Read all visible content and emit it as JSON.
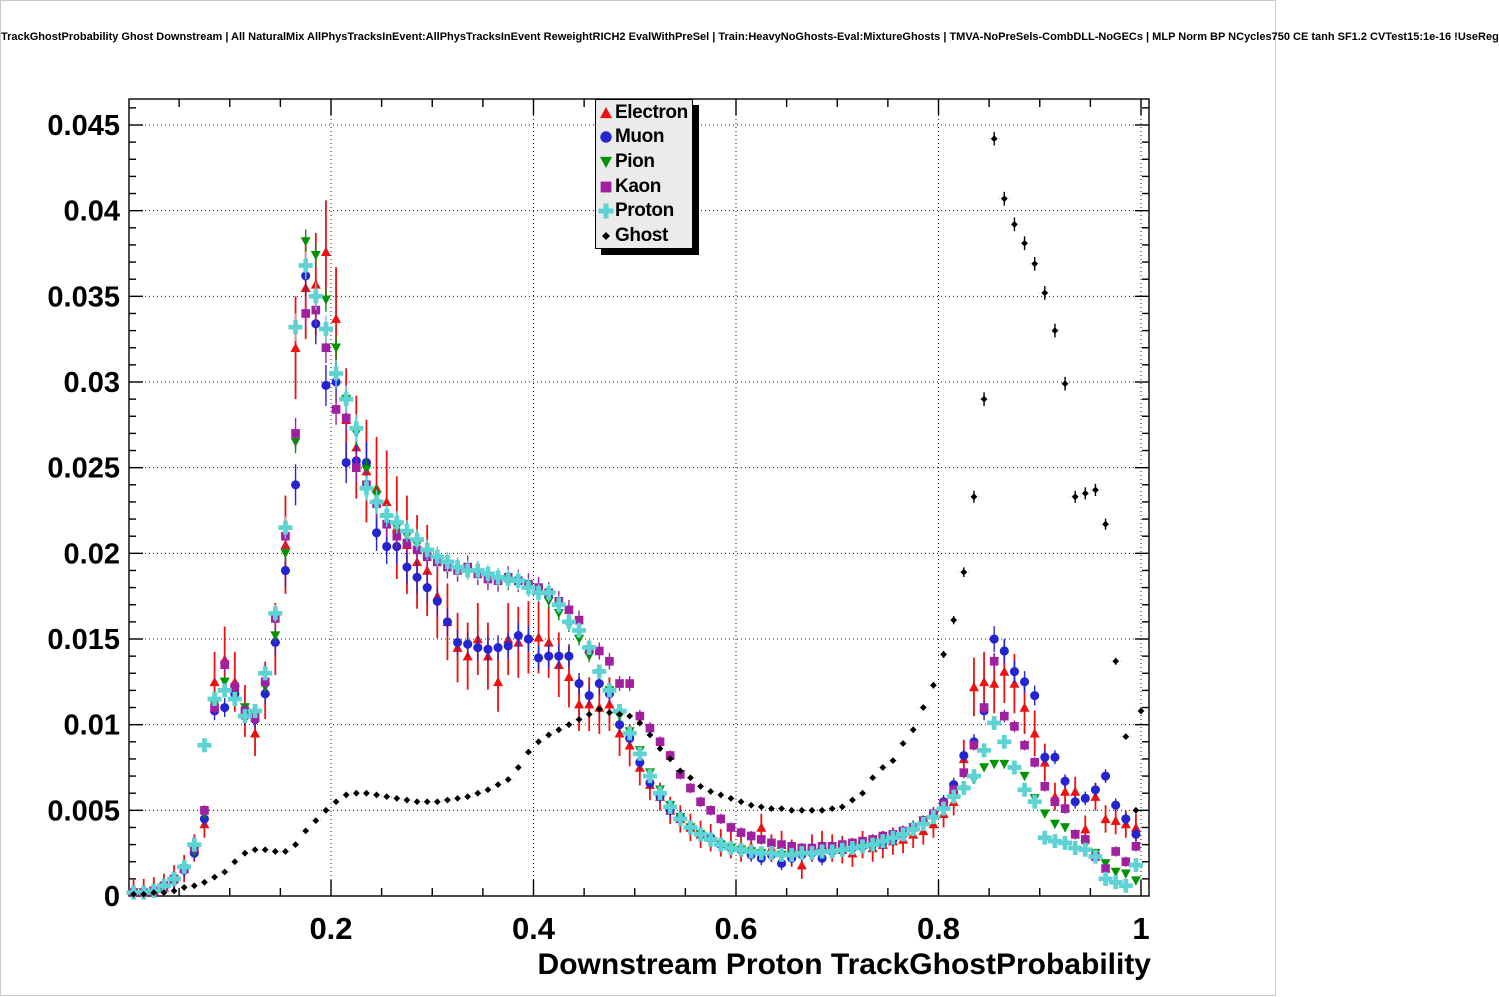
{
  "header": {
    "title": "TrackGhostProbability Ghost Downstream | All NaturalMix AllPhysTracksInEvent:AllPhysTracksInEvent ReweightRICH2 EvalWithPreSel | Train:HeavyNoGhosts-Eval:MixtureGhosts | TMVA-NoPreSels-CombDLL-NoGECs | MLP Norm BP NCycles750 CE tanh SF1.2 CVTest15:1e-16 !UseReg"
  },
  "chart_data": {
    "type": "scatter",
    "title": "TrackGhostProbability Ghost Downstream | All NaturalMix AllPhysTracksInEvent:AllPhysTracksInEvent ReweightRICH2 EvalWithPreSel | Train:HeavyNoGhosts-Eval:MixtureGhosts | TMVA-NoPreSels-CombDLL-NoGECs | MLP Norm BP NCycles750 CE tanh SF1.2 CVTest15:1e-16 !UseReg",
    "xlabel": "Downstream Proton TrackGhostProbability",
    "ylabel": "",
    "xlim": [
      0,
      1.008
    ],
    "ylim": [
      0,
      0.0465
    ],
    "grid": "dotted",
    "legend_position": "top-center",
    "x_ticks": {
      "major": [
        0.2,
        0.4,
        0.6,
        0.8,
        1.0
      ],
      "labels": [
        "0.2",
        "0.4",
        "0.6",
        "0.8",
        "1"
      ],
      "minor_step": 0.05
    },
    "y_ticks": {
      "major": [
        0,
        0.005,
        0.01,
        0.015,
        0.02,
        0.025,
        0.03,
        0.035,
        0.04,
        0.045
      ],
      "labels": [
        "0",
        "0.005",
        "0.01",
        "0.015",
        "0.02",
        "0.025",
        "0.03",
        "0.035",
        "0.04",
        "0.045"
      ],
      "minor_step": 0.001
    },
    "x_start": 0.005,
    "x_step": 0.01,
    "series": [
      {
        "name": "Electron",
        "marker": "triangle-up",
        "color": "#ee1111",
        "err_rel": 0.14,
        "err_min": 0.0008,
        "err_max": 0.003,
        "marker_size": 5,
        "y": [
          0.0002,
          0.0002,
          0.0003,
          0.0005,
          0.001,
          0.0016,
          0.0028,
          0.0042,
          0.0125,
          0.0138,
          0.0125,
          0.0108,
          0.0095,
          0.012,
          0.015,
          0.0205,
          0.032,
          0.0355,
          0.0357,
          0.0376,
          0.0337,
          0.0278,
          0.0262,
          0.0248,
          0.0238,
          0.023,
          0.0215,
          0.0205,
          0.0195,
          0.019,
          0.0175,
          0.016,
          0.0145,
          0.014,
          0.015,
          0.014,
          0.0125,
          0.015,
          0.0148,
          0.0151,
          0.0151,
          0.0148,
          0.0135,
          0.0128,
          0.0112,
          0.0112,
          0.011,
          0.0112,
          0.0095,
          0.0088,
          0.0075,
          0.0065,
          0.0058,
          0.005,
          0.0045,
          0.004,
          0.0036,
          0.0034,
          0.0031,
          0.003,
          0.0028,
          0.0029,
          0.004,
          0.0028,
          0.003,
          0.0025,
          0.0018,
          0.0028,
          0.003,
          0.0028,
          0.0027,
          0.0025,
          0.003,
          0.0028,
          0.003,
          0.0032,
          0.0033,
          0.0036,
          0.0038,
          0.0042,
          0.0048,
          0.0055,
          0.008,
          0.0122,
          0.0125,
          0.0124,
          0.0131,
          0.0124,
          0.011,
          0.0095,
          0.0078,
          0.0058,
          0.0061,
          0.0061,
          0.0039,
          0.0058,
          0.0045,
          0.0044,
          0.0042,
          0.004
        ]
      },
      {
        "name": "Muon",
        "marker": "circle",
        "color": "#2525cf",
        "err_rel": 0.05,
        "err_min": 0.0004,
        "err_max": 0.0012,
        "marker_size": 4.8,
        "y": [
          0.0002,
          0.0002,
          0.0003,
          0.0005,
          0.0009,
          0.0015,
          0.0025,
          0.0045,
          0.0108,
          0.011,
          0.0118,
          0.0105,
          0.0103,
          0.0118,
          0.0148,
          0.019,
          0.024,
          0.0362,
          0.0334,
          0.0298,
          0.03,
          0.0253,
          0.0254,
          0.0253,
          0.0212,
          0.0204,
          0.0204,
          0.0192,
          0.0186,
          0.018,
          0.0172,
          0.016,
          0.0148,
          0.0147,
          0.0145,
          0.0144,
          0.0145,
          0.0146,
          0.0152,
          0.015,
          0.0139,
          0.014,
          0.014,
          0.014,
          0.0124,
          0.0117,
          0.0124,
          0.0118,
          0.01,
          0.0092,
          0.0078,
          0.0066,
          0.0058,
          0.005,
          0.0046,
          0.004,
          0.0036,
          0.0034,
          0.003,
          0.0028,
          0.0027,
          0.0024,
          0.0022,
          0.0024,
          0.0019,
          0.0022,
          0.0024,
          0.0025,
          0.0022,
          0.0026,
          0.0027,
          0.0028,
          0.0029,
          0.003,
          0.0031,
          0.0033,
          0.0036,
          0.004,
          0.0043,
          0.0048,
          0.0055,
          0.0065,
          0.0082,
          0.009,
          0.0108,
          0.015,
          0.0143,
          0.0131,
          0.0125,
          0.0117,
          0.0081,
          0.0081,
          0.0067,
          0.0055,
          0.0057,
          0.0062,
          0.007,
          0.0053,
          0.0045,
          0.0036
        ]
      },
      {
        "name": "Pion",
        "marker": "triangle-down",
        "color": "#009400",
        "err_rel": 0.025,
        "err_min": 0.00025,
        "err_max": 0.0007,
        "marker_size": 5,
        "y": [
          0.0002,
          0.0002,
          0.0003,
          0.0005,
          0.0009,
          0.0016,
          0.0026,
          0.0048,
          0.0112,
          0.0125,
          0.012,
          0.011,
          0.0105,
          0.0122,
          0.0152,
          0.02,
          0.0265,
          0.0382,
          0.0374,
          0.0348,
          0.032,
          0.029,
          0.027,
          0.0249,
          0.0234,
          0.0221,
          0.0215,
          0.021,
          0.0205,
          0.02,
          0.0195,
          0.0192,
          0.019,
          0.019,
          0.0188,
          0.0186,
          0.0184,
          0.0183,
          0.0182,
          0.018,
          0.0178,
          0.0172,
          0.0165,
          0.0158,
          0.015,
          0.014,
          0.013,
          0.012,
          0.0105,
          0.0096,
          0.0085,
          0.0072,
          0.0062,
          0.0053,
          0.0046,
          0.004,
          0.0036,
          0.0032,
          0.003,
          0.0028,
          0.0027,
          0.0026,
          0.0025,
          0.0024,
          0.0024,
          0.0024,
          0.0024,
          0.0025,
          0.0025,
          0.0026,
          0.0027,
          0.0028,
          0.0029,
          0.0031,
          0.0033,
          0.0035,
          0.0037,
          0.004,
          0.0044,
          0.0048,
          0.0052,
          0.0058,
          0.0062,
          0.0068,
          0.0075,
          0.0077,
          0.0077,
          0.0074,
          0.007,
          0.0057,
          0.0048,
          0.0042,
          0.004,
          0.0036,
          0.003,
          0.0025,
          0.0019,
          0.0014,
          0.0013,
          0.0009
        ]
      },
      {
        "name": "Kaon",
        "marker": "square",
        "color": "#a020a0",
        "err_rel": 0.035,
        "err_min": 0.0003,
        "err_max": 0.0009,
        "marker_size": 4.8,
        "y": [
          0.0002,
          0.0002,
          0.0003,
          0.0006,
          0.001,
          0.0016,
          0.0028,
          0.005,
          0.011,
          0.0135,
          0.0122,
          0.0108,
          0.0104,
          0.0125,
          0.0162,
          0.021,
          0.027,
          0.034,
          0.0342,
          0.032,
          0.0284,
          0.0279,
          0.025,
          0.024,
          0.0229,
          0.0217,
          0.021,
          0.0206,
          0.0202,
          0.0198,
          0.0195,
          0.0192,
          0.019,
          0.0192,
          0.0188,
          0.0185,
          0.0184,
          0.0186,
          0.0184,
          0.0182,
          0.018,
          0.0177,
          0.0172,
          0.0167,
          0.0161,
          0.0144,
          0.0143,
          0.0137,
          0.0124,
          0.0124,
          0.0105,
          0.0098,
          0.009,
          0.0082,
          0.0071,
          0.0063,
          0.0055,
          0.005,
          0.0045,
          0.004,
          0.0037,
          0.0035,
          0.0033,
          0.0031,
          0.003,
          0.0029,
          0.0028,
          0.0028,
          0.0029,
          0.0029,
          0.003,
          0.0031,
          0.0032,
          0.0033,
          0.0035,
          0.0036,
          0.0038,
          0.004,
          0.0044,
          0.0048,
          0.0054,
          0.0062,
          0.0072,
          0.0088,
          0.011,
          0.0137,
          0.0105,
          0.0099,
          0.0088,
          0.0078,
          0.0064,
          0.0055,
          0.0051,
          0.0036,
          0.0033,
          0.0023,
          0.0016,
          0.0026,
          0.002,
          0.0029
        ]
      },
      {
        "name": "Proton",
        "marker": "cross",
        "color": "#5fd3d3",
        "err_rel": 0.03,
        "err_min": 0.00025,
        "err_max": 0.0008,
        "marker_size": 5.6,
        "y": [
          0.0002,
          0.0002,
          0.0003,
          0.0006,
          0.001,
          0.0017,
          0.003,
          0.0088,
          0.0115,
          0.012,
          0.0115,
          0.0105,
          0.0108,
          0.013,
          0.0165,
          0.0215,
          0.0332,
          0.0368,
          0.035,
          0.0331,
          0.0305,
          0.029,
          0.0273,
          0.0238,
          0.023,
          0.0222,
          0.0218,
          0.0213,
          0.0208,
          0.0202,
          0.0198,
          0.0195,
          0.0192,
          0.019,
          0.019,
          0.0188,
          0.0186,
          0.0185,
          0.0184,
          0.018,
          0.0177,
          0.0177,
          0.017,
          0.016,
          0.0155,
          0.0145,
          0.0131,
          0.012,
          0.0108,
          0.0095,
          0.0083,
          0.007,
          0.006,
          0.0052,
          0.0045,
          0.004,
          0.0036,
          0.0033,
          0.003,
          0.0028,
          0.0027,
          0.0026,
          0.0025,
          0.0025,
          0.0024,
          0.0024,
          0.0025,
          0.0025,
          0.0026,
          0.0026,
          0.0027,
          0.0028,
          0.0029,
          0.003,
          0.0032,
          0.0034,
          0.0036,
          0.0039,
          0.0042,
          0.0046,
          0.0051,
          0.0058,
          0.0063,
          0.007,
          0.0085,
          0.0101,
          0.009,
          0.0075,
          0.0062,
          0.0055,
          0.0034,
          0.0032,
          0.0031,
          0.0028,
          0.0027,
          0.0023,
          0.001,
          0.0008,
          0.0006,
          0.0018
        ]
      },
      {
        "name": "Ghost",
        "marker": "diamond",
        "color": "#000000",
        "err_rel": 0.015,
        "err_min": 0.00012,
        "err_max": 0.0004,
        "marker_size": 3.4,
        "y": [
          0.0001,
          0.0001,
          0.0002,
          0.0002,
          0.0003,
          0.0005,
          0.0006,
          0.0008,
          0.0011,
          0.0014,
          0.002,
          0.0025,
          0.0027,
          0.0027,
          0.0026,
          0.0026,
          0.003,
          0.0038,
          0.0044,
          0.005,
          0.0055,
          0.0059,
          0.006,
          0.006,
          0.0059,
          0.0058,
          0.0057,
          0.0056,
          0.0055,
          0.0055,
          0.0055,
          0.0056,
          0.0057,
          0.0058,
          0.006,
          0.0062,
          0.0065,
          0.0068,
          0.0075,
          0.0084,
          0.009,
          0.0094,
          0.0097,
          0.01,
          0.0103,
          0.0106,
          0.0109,
          0.0107,
          0.0106,
          0.0105,
          0.0101,
          0.0094,
          0.0086,
          0.008,
          0.0073,
          0.0069,
          0.0064,
          0.0061,
          0.0059,
          0.0057,
          0.0055,
          0.0053,
          0.0052,
          0.0051,
          0.0051,
          0.005,
          0.005,
          0.005,
          0.005,
          0.0051,
          0.0052,
          0.0056,
          0.006,
          0.0069,
          0.0075,
          0.0079,
          0.0089,
          0.0097,
          0.011,
          0.0123,
          0.0141,
          0.0161,
          0.0189,
          0.0233,
          0.029,
          0.0442,
          0.0407,
          0.0392,
          0.0381,
          0.0369,
          0.0352,
          0.033,
          0.0299,
          0.0233,
          0.0235,
          0.0237,
          0.0217,
          0.0137,
          0.0093,
          0.005
        ],
        "extra_points": [
          [
            1.0,
            0.0108
          ]
        ]
      }
    ]
  }
}
